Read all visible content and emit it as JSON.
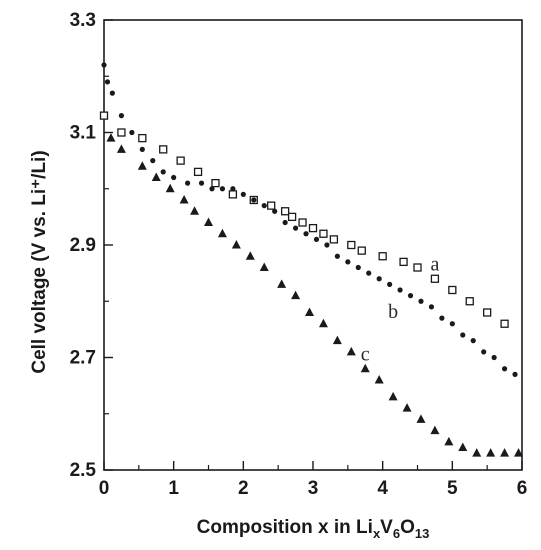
{
  "chart_data": {
    "type": "scatter",
    "ylabel": "Cell voltage (V vs. Li⁺/Li)",
    "xlabel": {
      "prefix": "Composition x in Li",
      "parts": [
        {
          "text": "x",
          "sub": true
        },
        {
          "text": "V",
          "sub": false
        },
        {
          "text": "6",
          "sub": true
        },
        {
          "text": "O",
          "sub": false
        },
        {
          "text": "13",
          "sub": true
        }
      ]
    },
    "xlim": [
      0,
      6
    ],
    "ylim": [
      2.5,
      3.3
    ],
    "x_ticks": [
      0,
      1,
      2,
      3,
      4,
      5,
      6
    ],
    "y_ticks": [
      2.5,
      2.7,
      2.9,
      3.1,
      3.3
    ],
    "x_tick_labels": [
      "0",
      "1",
      "2",
      "3",
      "4",
      "5",
      "6"
    ],
    "y_tick_labels": [
      "2.5",
      "2.7",
      "2.9",
      "3.1",
      "3.3"
    ],
    "grid": false,
    "series": [
      {
        "label": "a",
        "marker": "open-square",
        "x": [
          0.0,
          0.25,
          0.55,
          0.85,
          1.1,
          1.35,
          1.6,
          1.85,
          2.15,
          2.4,
          2.6,
          2.7,
          2.85,
          3.0,
          3.15,
          3.3,
          3.55,
          3.7,
          4.0,
          4.3,
          4.5,
          4.75,
          5.0,
          5.25,
          5.5,
          5.75
        ],
        "y": [
          3.13,
          3.1,
          3.09,
          3.07,
          3.05,
          3.03,
          3.01,
          2.99,
          2.98,
          2.97,
          2.96,
          2.95,
          2.94,
          2.93,
          2.92,
          2.91,
          2.9,
          2.89,
          2.88,
          2.87,
          2.86,
          2.84,
          2.82,
          2.8,
          2.78,
          2.76
        ]
      },
      {
        "label": "b",
        "marker": "filled-circle",
        "x": [
          0.0,
          0.05,
          0.12,
          0.25,
          0.4,
          0.55,
          0.7,
          0.85,
          1.0,
          1.2,
          1.4,
          1.55,
          1.7,
          1.85,
          2.0,
          2.15,
          2.3,
          2.45,
          2.6,
          2.75,
          2.9,
          3.05,
          3.2,
          3.35,
          3.5,
          3.65,
          3.8,
          3.95,
          4.1,
          4.25,
          4.4,
          4.55,
          4.7,
          4.85,
          5.0,
          5.15,
          5.3,
          5.45,
          5.6,
          5.75,
          5.9
        ],
        "y": [
          3.22,
          3.19,
          3.17,
          3.13,
          3.1,
          3.07,
          3.05,
          3.03,
          3.02,
          3.01,
          3.01,
          3.0,
          3.0,
          3.0,
          2.99,
          2.98,
          2.97,
          2.96,
          2.94,
          2.93,
          2.92,
          2.91,
          2.9,
          2.88,
          2.87,
          2.86,
          2.85,
          2.84,
          2.83,
          2.82,
          2.81,
          2.8,
          2.79,
          2.77,
          2.76,
          2.74,
          2.73,
          2.71,
          2.7,
          2.68,
          2.67
        ]
      },
      {
        "label": "c",
        "marker": "filled-triangle",
        "x": [
          0.1,
          0.25,
          0.55,
          0.75,
          0.95,
          1.15,
          1.3,
          1.5,
          1.7,
          1.9,
          2.1,
          2.3,
          2.55,
          2.75,
          2.95,
          3.15,
          3.35,
          3.55,
          3.75,
          3.95,
          4.15,
          4.35,
          4.55,
          4.75,
          4.95,
          5.15,
          5.35,
          5.55,
          5.75,
          5.95
        ],
        "y": [
          3.09,
          3.07,
          3.04,
          3.02,
          3.0,
          2.98,
          2.96,
          2.94,
          2.92,
          2.9,
          2.88,
          2.86,
          2.83,
          2.81,
          2.78,
          2.76,
          2.73,
          2.71,
          2.68,
          2.66,
          2.63,
          2.61,
          2.59,
          2.57,
          2.55,
          2.54,
          2.53,
          2.53,
          2.53,
          2.53
        ]
      }
    ]
  }
}
